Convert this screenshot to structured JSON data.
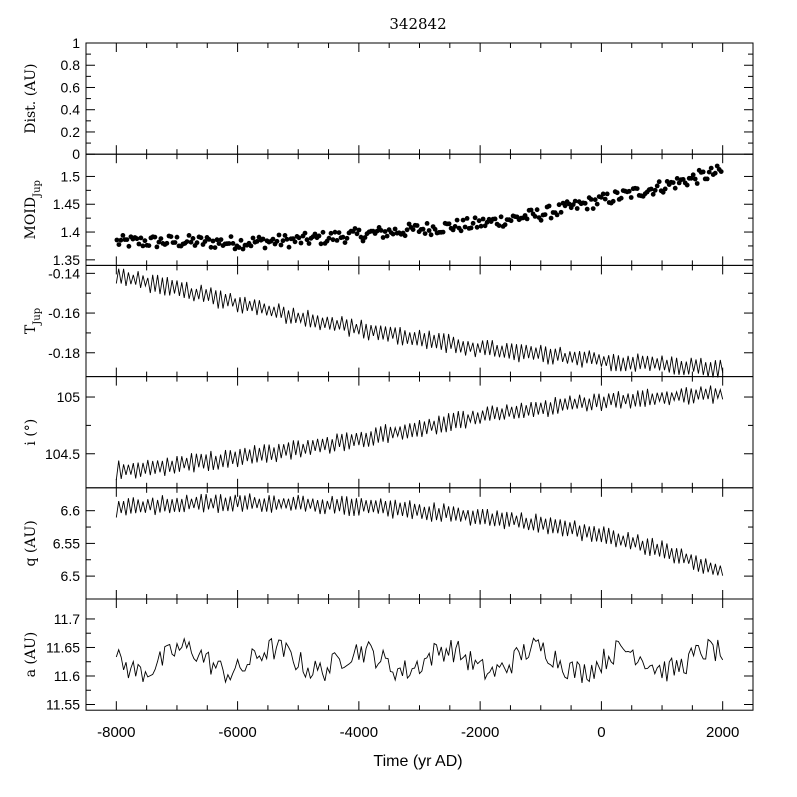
{
  "chart_data": {
    "type": "line",
    "title": "342842",
    "xlabel": "Time (yr AD)",
    "xlim": [
      -8500,
      2500
    ],
    "xticks": [
      -8000,
      -6000,
      -4000,
      -2000,
      0,
      2000
    ],
    "panels": [
      {
        "id": "dist",
        "ylabel": "Dist. (AU)",
        "ylabel_sub": "",
        "style": "empty",
        "ylim": [
          0,
          1
        ],
        "ticks": [
          0,
          0.2,
          0.4,
          0.6,
          0.8,
          1
        ],
        "tick_labels": [
          "0",
          "0.2",
          "0.4",
          "0.6",
          "0.8",
          "1"
        ],
        "series": []
      },
      {
        "id": "moid",
        "ylabel": "MOID",
        "ylabel_sub": "Jup",
        "style": "scatter",
        "ylim": [
          1.34,
          1.54
        ],
        "ticks": [
          1.35,
          1.4,
          1.45,
          1.5
        ],
        "tick_labels": [
          "1.35",
          "1.4",
          "1.45",
          "1.5"
        ],
        "trend": {
          "x": [
            -8000,
            -7000,
            -6000,
            -5000,
            -4000,
            -3000,
            -2000,
            -1000,
            0,
            1000,
            2000
          ],
          "y": [
            1.382,
            1.383,
            1.381,
            1.385,
            1.395,
            1.405,
            1.415,
            1.432,
            1.457,
            1.482,
            1.51
          ]
        }
      },
      {
        "id": "tjup",
        "ylabel": "T",
        "ylabel_sub": "Jup",
        "style": "line",
        "ylim": [
          -0.192,
          -0.136
        ],
        "ticks": [
          -0.18,
          -0.16,
          -0.14
        ],
        "tick_labels": [
          "-0.18",
          "-0.16",
          "-0.14"
        ],
        "trend": {
          "x": [
            -8000,
            -7000,
            -6000,
            -5000,
            -4000,
            -3000,
            -2000,
            -1000,
            0,
            1000,
            2000
          ],
          "y": [
            -0.141,
            -0.148,
            -0.155,
            -0.162,
            -0.168,
            -0.173,
            -0.178,
            -0.181,
            -0.184,
            -0.186,
            -0.188
          ]
        }
      },
      {
        "id": "incl",
        "ylabel": "i (°)",
        "ylabel_sub": "",
        "style": "line",
        "ylim": [
          104.2,
          105.18
        ],
        "ticks": [
          104.5,
          105
        ],
        "tick_labels": [
          "104.5",
          "105"
        ],
        "trend": {
          "x": [
            -8000,
            -7000,
            -6000,
            -5000,
            -4000,
            -3000,
            -2000,
            -1000,
            0,
            1000,
            2000
          ],
          "y": [
            104.35,
            104.4,
            104.47,
            104.54,
            104.63,
            104.73,
            104.83,
            104.9,
            104.96,
            105.0,
            105.03
          ]
        }
      },
      {
        "id": "q",
        "ylabel": "q (AU)",
        "ylabel_sub": "",
        "style": "line",
        "ylim": [
          6.465,
          6.635
        ],
        "ticks": [
          6.5,
          6.55,
          6.6
        ],
        "tick_labels": [
          "6.5",
          "6.55",
          "6.6"
        ],
        "trend": {
          "x": [
            -8000,
            -7000,
            -6000,
            -5000,
            -4000,
            -3000,
            -2000,
            -1000,
            0,
            1000,
            2000
          ],
          "y": [
            6.604,
            6.61,
            6.612,
            6.611,
            6.606,
            6.6,
            6.591,
            6.58,
            6.563,
            6.54,
            6.508
          ]
        }
      },
      {
        "id": "a",
        "ylabel": "a (AU)",
        "ylabel_sub": "",
        "style": "line",
        "ylim": [
          11.54,
          11.735
        ],
        "ticks": [
          11.55,
          11.6,
          11.65,
          11.7
        ],
        "tick_labels": [
          "11.55",
          "11.6",
          "11.65",
          "11.7"
        ],
        "trend": {
          "x": [
            -8000,
            -7000,
            -6000,
            -5000,
            -4000,
            -3000,
            -2000,
            -1000,
            0,
            1000,
            2000
          ],
          "y": [
            11.625,
            11.63,
            11.625,
            11.63,
            11.625,
            11.63,
            11.625,
            11.63,
            11.625,
            11.63,
            11.625
          ]
        }
      }
    ],
    "grid": false,
    "legend": "none"
  }
}
